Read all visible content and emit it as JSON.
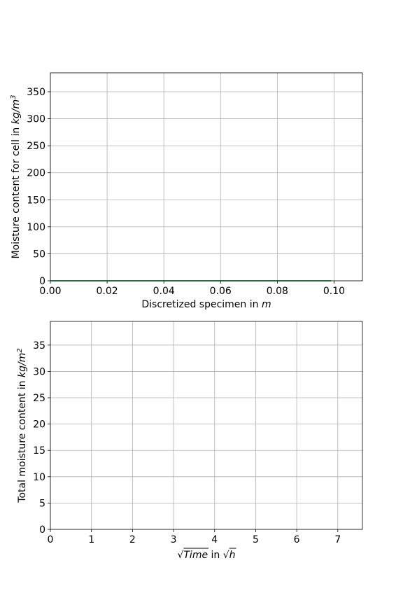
{
  "chart_data": [
    {
      "type": "line",
      "xlabel": "Discretized specimen in m",
      "xlabel_parts": {
        "text": "Discretized specimen in ",
        "unit": "m"
      },
      "ylabel": "Moisture content for cell in kg/m3",
      "ylabel_parts": {
        "text": "Moisture content for cell in ",
        "unit": "kg/m",
        "unit_sup": "3"
      },
      "xlim": [
        0,
        0.11
      ],
      "ylim": [
        0,
        385
      ],
      "xticks": [
        0.0,
        0.02,
        0.04,
        0.06,
        0.08,
        0.1
      ],
      "xtick_labels": [
        "0.00",
        "0.02",
        "0.04",
        "0.06",
        "0.08",
        "0.10"
      ],
      "yticks": [
        0,
        50,
        100,
        150,
        200,
        250,
        300,
        350
      ],
      "ytick_labels": [
        "0",
        "50",
        "100",
        "150",
        "200",
        "250",
        "300",
        "350"
      ],
      "grid": true,
      "series": [
        {
          "color": "#1f77b4",
          "x": [
            0.0,
            0.099
          ],
          "y": [
            0,
            0
          ]
        },
        {
          "color": "#2ca02c",
          "x": [
            0.0,
            0.099
          ],
          "y": [
            0,
            0
          ]
        }
      ]
    },
    {
      "type": "line",
      "xlabel": "√Time in √h",
      "xlabel_parts": {
        "sqrt1": "Time",
        "mid": " in ",
        "sqrt2": "h"
      },
      "ylabel": "Total moisture content in kg/m2",
      "ylabel_parts": {
        "text": "Total moisture content in ",
        "unit": "kg/m",
        "unit_sup": "2"
      },
      "xlim": [
        0,
        7.6
      ],
      "ylim": [
        0,
        39.5
      ],
      "xticks": [
        0,
        1,
        2,
        3,
        4,
        5,
        6,
        7
      ],
      "xtick_labels": [
        "0",
        "1",
        "2",
        "3",
        "4",
        "5",
        "6",
        "7"
      ],
      "yticks": [
        0,
        5,
        10,
        15,
        20,
        25,
        30,
        35
      ],
      "ytick_labels": [
        "0",
        "5",
        "10",
        "15",
        "20",
        "25",
        "30",
        "35"
      ],
      "grid": true,
      "series": []
    }
  ]
}
